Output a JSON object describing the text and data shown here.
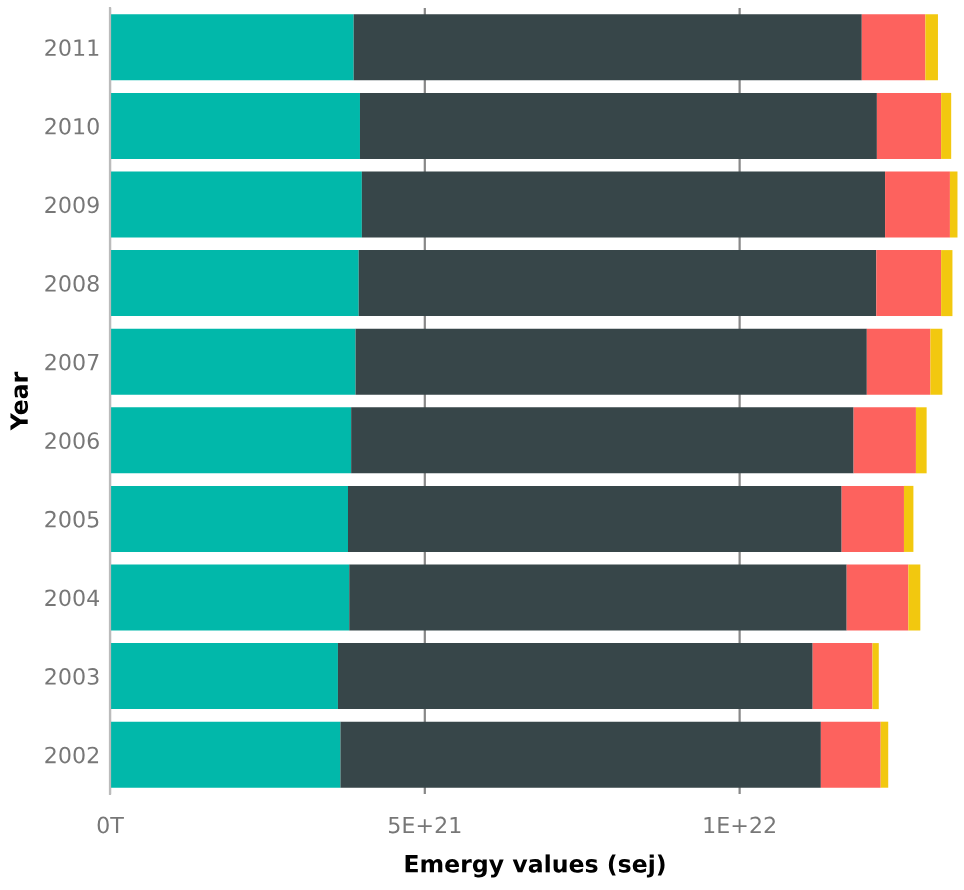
{
  "chart_data": {
    "type": "bar",
    "orientation": "horizontal",
    "stacked": true,
    "xlabel": "Emergy values (sej)",
    "ylabel": "Year",
    "categories": [
      "2011",
      "2010",
      "2009",
      "2008",
      "2007",
      "2006",
      "2005",
      "2004",
      "2003",
      "2002"
    ],
    "series": [
      {
        "color": "#01b8aa",
        "values": [
          3.87e+21,
          3.97e+21,
          4e+21,
          3.95e+21,
          3.9e+21,
          3.83e+21,
          3.78e+21,
          3.8e+21,
          3.62e+21,
          3.66e+21
        ]
      },
      {
        "color": "#374649",
        "values": [
          8.07e+21,
          8.21e+21,
          8.31e+21,
          8.22e+21,
          8.12e+21,
          7.98e+21,
          7.84e+21,
          7.9e+21,
          7.54e+21,
          7.63e+21
        ]
      },
      {
        "color": "#fd625e",
        "values": [
          1.01e+21,
          1.02e+21,
          1.03e+21,
          1.03e+21,
          1.01e+21,
          9.9e+20,
          9.9e+20,
          9.8e+20,
          9.5e+20,
          9.5e+20
        ]
      },
      {
        "color": "#f2c80f",
        "values": [
          2e+20,
          1.6e+20,
          1.2e+20,
          1.8e+20,
          1.9e+20,
          1.7e+20,
          1.5e+20,
          1.9e+20,
          1e+20,
          1.2e+20
        ]
      }
    ],
    "xlim": [
      0,
      1.35e+22
    ],
    "xticks": [
      {
        "value": 0,
        "label": "0T"
      },
      {
        "value": 5e+21,
        "label": "5E+21"
      },
      {
        "value": 1e+22,
        "label": "1E+22"
      }
    ],
    "grid": "x",
    "legend": false
  }
}
